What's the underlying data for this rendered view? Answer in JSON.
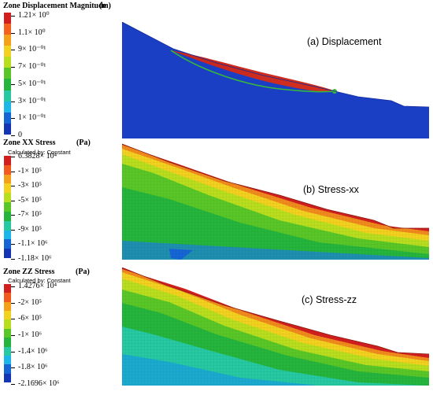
{
  "panels": [
    {
      "title": "Zone Displacement Magnitude",
      "unit": "(m)",
      "calc": "",
      "caption": "(a) Displacement",
      "colors": [
        "#d11f1f",
        "#f4621e",
        "#f4a019",
        "#f2d21e",
        "#b8de1e",
        "#59c628",
        "#25b43c",
        "#26c9a1",
        "#1ab7e8",
        "#1565d4",
        "#1436b4"
      ],
      "ticks": [
        "1.21× 10⁰",
        "1.1× 10⁰",
        "9× 10⁻⁰¹",
        "7× 10⁻⁰¹",
        "5× 10⁻⁰¹",
        "3× 10⁻⁰¹",
        "1× 10⁻⁰¹",
        "0"
      ]
    },
    {
      "title": "Zone XX Stress",
      "unit": "(Pa)",
      "calc": "Calculated by: Constant",
      "caption": "(b) Stress-xx",
      "colors": [
        "#d11f1f",
        "#f25a1e",
        "#f4a019",
        "#f2d21e",
        "#b8de1e",
        "#59c628",
        "#25b43c",
        "#26c9a1",
        "#1ab7e8",
        "#1565d4",
        "#1436b4"
      ],
      "ticks": [
        "6.3828× 10⁴",
        "-1× 10⁵",
        "-3× 10⁵",
        "-5× 10⁵",
        "-7× 10⁵",
        "-9× 10⁵",
        "-1.1× 10⁶",
        "-1.18× 10⁶"
      ]
    },
    {
      "title": "Zone ZZ Stress",
      "unit": "(Pa)",
      "calc": "Calculated by: Constant",
      "caption": "(c) Stress-zz",
      "colors": [
        "#d11f1f",
        "#f25a1e",
        "#f4a019",
        "#f2d21e",
        "#b8de1e",
        "#59c628",
        "#25b43c",
        "#26c9a1",
        "#1ab7e8",
        "#1565d4",
        "#1436b4"
      ],
      "ticks": [
        "1.4276× 10⁴",
        "-2× 10⁵",
        "-6× 10⁵",
        "-1× 10⁶",
        "-1.4× 10⁶",
        "-1.8× 10⁶",
        "-2.1696× 10⁶"
      ]
    }
  ],
  "colors": {
    "blue_body": "#1a3fc4",
    "red_slide": "#cc2a1e",
    "green_mid": "#37b83a",
    "yellow": "#e9d51d",
    "orange": "#f08a1c",
    "cyan": "#1aa9cf"
  }
}
